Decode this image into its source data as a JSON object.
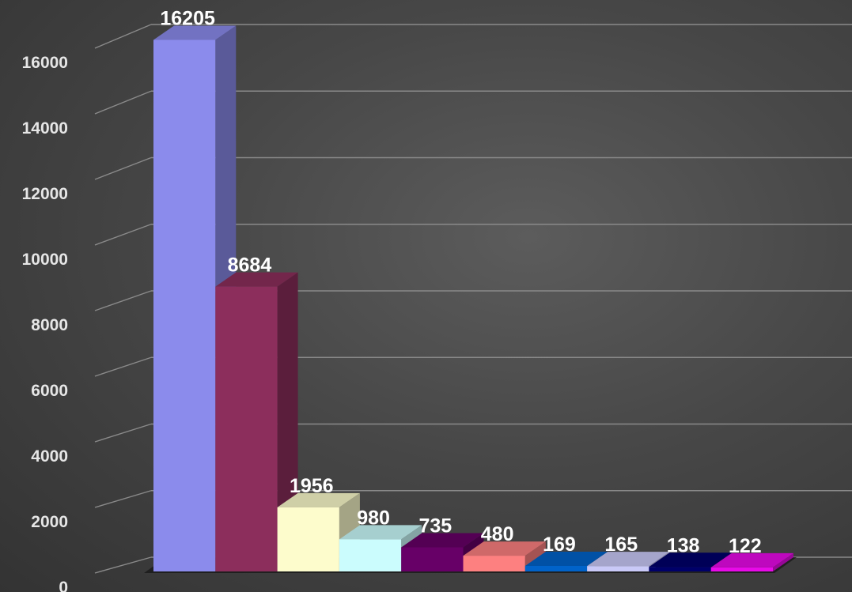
{
  "chart_data": {
    "type": "bar",
    "style": "3d-clustered-column",
    "title": "",
    "xlabel": "",
    "ylabel": "",
    "ylim": [
      0,
      16000
    ],
    "yticks": [
      0,
      2000,
      4000,
      6000,
      8000,
      10000,
      12000,
      14000,
      16000
    ],
    "grid": true,
    "legend": "none",
    "values": [
      16205,
      8684,
      1956,
      980,
      735,
      480,
      169,
      165,
      138,
      122
    ],
    "data_labels": [
      "16205",
      "8684",
      "1956",
      "980",
      "735",
      "480",
      "169",
      "165",
      "138",
      "122"
    ],
    "colors": [
      "#8b8bec",
      "#8c2e5c",
      "#fdfccc",
      "#cbfcfd",
      "#670067",
      "#fd8080",
      "#0163c9",
      "#c9c9f7",
      "#00006a",
      "#e80ae8"
    ]
  }
}
